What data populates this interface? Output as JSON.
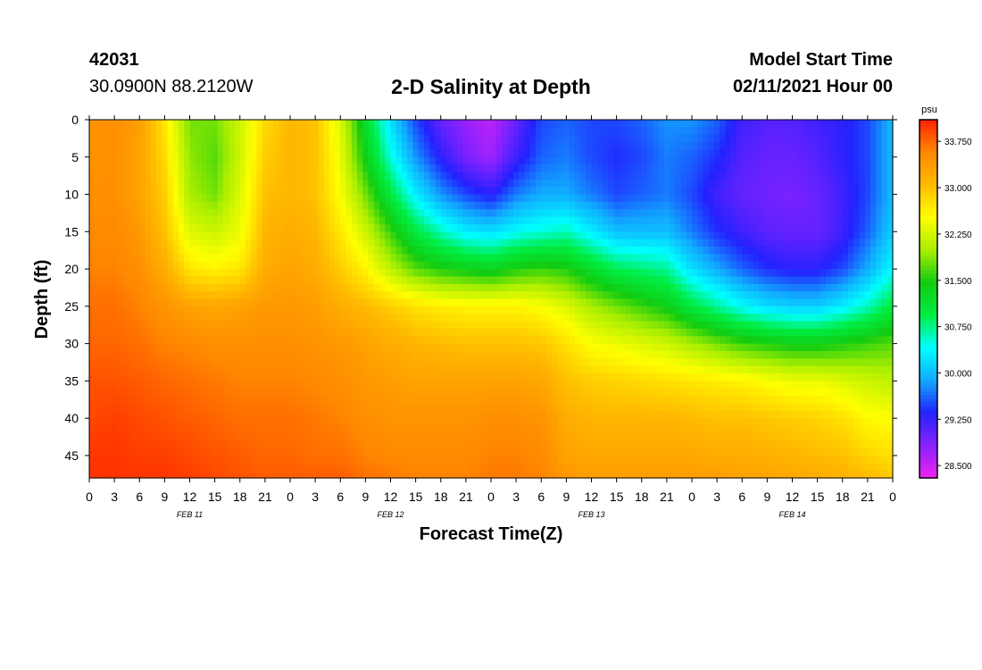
{
  "header": {
    "station_id": "42031",
    "coordinates": "30.0900N 88.2120W",
    "title": "2-D Salinity at Depth",
    "start_label": "Model Start Time",
    "start_value": "02/11/2021 Hour 00"
  },
  "colors": {
    "ramp": [
      "#ee22ee",
      "#8822ff",
      "#2222ff",
      "#11aaff",
      "#00ffff",
      "#00ee44",
      "#11cc11",
      "#aaee00",
      "#ffff00",
      "#ffbb00",
      "#ff8800",
      "#ff2200"
    ]
  },
  "chart_data": {
    "type": "heatmap",
    "title": "2-D Salinity at Depth",
    "xlabel": "Forecast Time(Z)",
    "ylabel": "Depth (ft)",
    "colorbar_unit": "psu",
    "colorbar_ticks": [
      "33.750",
      "33.000",
      "32.250",
      "31.500",
      "30.750",
      "30.000",
      "29.250",
      "28.500"
    ],
    "colorbar_range": [
      28.3,
      34.1
    ],
    "x_range_hours": [
      0,
      96
    ],
    "y_range_ft": [
      0,
      48
    ],
    "y_reversed": true,
    "x_tick_labels": [
      "0",
      "3",
      "6",
      "9",
      "12",
      "15",
      "18",
      "21",
      "0",
      "3",
      "6",
      "9",
      "12",
      "15",
      "18",
      "21",
      "0",
      "3",
      "6",
      "9",
      "12",
      "15",
      "18",
      "21",
      "0",
      "3",
      "6",
      "9",
      "12",
      "15",
      "18",
      "21",
      "0"
    ],
    "y_ticks": [
      0,
      5,
      10,
      15,
      20,
      25,
      30,
      35,
      40,
      45
    ],
    "date_labels": [
      {
        "text": "FEB 11",
        "hour": 12
      },
      {
        "text": "FEB 12",
        "hour": 36
      },
      {
        "text": "FEB 13",
        "hour": 60
      },
      {
        "text": "FEB 14",
        "hour": 84
      }
    ],
    "salinity_grid": {
      "hours": [
        0,
        3,
        6,
        9,
        12,
        15,
        18,
        21,
        24,
        27,
        30,
        33,
        36,
        39,
        42,
        45,
        48,
        51,
        54,
        57,
        60,
        63,
        66,
        69,
        72,
        75,
        78,
        81,
        84,
        87,
        90,
        93,
        96
      ],
      "depths_ft": [
        0,
        5,
        10,
        15,
        20,
        25,
        30,
        35,
        40,
        45,
        48
      ],
      "values_psu": [
        [
          33.45,
          33.45,
          33.5,
          33.55,
          33.6,
          33.7,
          33.75,
          33.85,
          33.9,
          34.0,
          34.0
        ],
        [
          33.5,
          33.5,
          33.5,
          33.55,
          33.6,
          33.7,
          33.75,
          33.85,
          33.95,
          34.0,
          34.0
        ],
        [
          33.35,
          33.3,
          33.3,
          33.4,
          33.5,
          33.6,
          33.7,
          33.8,
          33.9,
          33.95,
          34.0
        ],
        [
          32.7,
          32.8,
          32.9,
          33.0,
          33.2,
          33.45,
          33.6,
          33.75,
          33.85,
          33.95,
          34.0
        ],
        [
          31.8,
          31.9,
          32.0,
          32.3,
          32.7,
          33.3,
          33.55,
          33.7,
          33.8,
          33.9,
          33.95
        ],
        [
          31.8,
          31.7,
          31.8,
          32.2,
          32.6,
          33.25,
          33.5,
          33.65,
          33.75,
          33.85,
          33.9
        ],
        [
          32.2,
          32.2,
          32.3,
          32.4,
          32.7,
          33.3,
          33.5,
          33.6,
          33.7,
          33.8,
          33.85
        ],
        [
          32.8,
          32.9,
          33.0,
          33.1,
          33.2,
          33.4,
          33.5,
          33.6,
          33.7,
          33.75,
          33.8
        ],
        [
          33.1,
          33.1,
          33.1,
          33.2,
          33.3,
          33.4,
          33.5,
          33.6,
          33.7,
          33.75,
          33.8
        ],
        [
          33.0,
          33.0,
          33.0,
          33.1,
          33.2,
          33.35,
          33.45,
          33.55,
          33.65,
          33.7,
          33.8
        ],
        [
          32.3,
          32.4,
          32.5,
          32.7,
          32.9,
          33.2,
          33.4,
          33.5,
          33.6,
          33.7,
          33.8
        ],
        [
          31.2,
          31.4,
          31.8,
          32.2,
          32.6,
          33.05,
          33.3,
          33.4,
          33.5,
          33.6,
          33.7
        ],
        [
          30.2,
          30.5,
          31.0,
          31.6,
          32.1,
          32.9,
          33.2,
          33.35,
          33.45,
          33.55,
          33.65
        ],
        [
          29.5,
          29.8,
          30.3,
          31.0,
          31.7,
          32.75,
          33.1,
          33.3,
          33.45,
          33.55,
          33.6
        ],
        [
          29.0,
          29.3,
          29.8,
          30.6,
          31.5,
          32.65,
          33.05,
          33.3,
          33.45,
          33.55,
          33.6
        ],
        [
          28.75,
          28.9,
          29.5,
          30.3,
          31.4,
          32.6,
          33.0,
          33.3,
          33.45,
          33.55,
          33.6
        ],
        [
          28.55,
          28.7,
          29.3,
          30.2,
          31.3,
          32.6,
          33.0,
          33.3,
          33.5,
          33.6,
          33.65
        ],
        [
          29.0,
          29.2,
          29.7,
          30.4,
          31.5,
          32.6,
          33.0,
          33.3,
          33.5,
          33.6,
          33.65
        ],
        [
          29.5,
          29.6,
          29.9,
          30.5,
          31.6,
          32.5,
          32.95,
          33.25,
          33.45,
          33.55,
          33.6
        ],
        [
          29.6,
          29.7,
          29.9,
          30.6,
          31.5,
          32.3,
          32.75,
          33.0,
          33.2,
          33.3,
          33.4
        ],
        [
          29.5,
          29.5,
          29.7,
          30.3,
          31.2,
          32.0,
          32.5,
          32.9,
          33.1,
          33.25,
          33.35
        ],
        [
          29.5,
          29.4,
          29.5,
          30.0,
          30.9,
          31.8,
          32.4,
          32.85,
          33.1,
          33.25,
          33.35
        ],
        [
          29.6,
          29.5,
          29.6,
          30.0,
          30.8,
          31.6,
          32.3,
          32.8,
          33.1,
          33.25,
          33.35
        ],
        [
          29.8,
          29.7,
          29.7,
          30.0,
          30.7,
          31.4,
          32.2,
          32.75,
          33.1,
          33.25,
          33.35
        ],
        [
          29.8,
          29.6,
          29.5,
          29.7,
          30.2,
          31.0,
          32.0,
          32.7,
          33.05,
          33.25,
          33.35
        ],
        [
          29.6,
          29.4,
          29.2,
          29.4,
          29.9,
          30.7,
          31.8,
          32.65,
          33.0,
          33.2,
          33.35
        ],
        [
          29.2,
          29.1,
          29.0,
          29.2,
          29.6,
          30.4,
          31.6,
          32.6,
          33.0,
          33.2,
          33.3
        ],
        [
          29.1,
          29.0,
          28.95,
          29.05,
          29.4,
          30.2,
          31.5,
          32.5,
          32.95,
          33.15,
          33.3
        ],
        [
          29.1,
          29.0,
          28.9,
          29.0,
          29.3,
          30.1,
          31.4,
          32.4,
          32.9,
          33.1,
          33.25
        ],
        [
          29.2,
          29.1,
          29.0,
          29.0,
          29.3,
          30.1,
          31.4,
          32.4,
          32.85,
          33.05,
          33.2
        ],
        [
          29.3,
          29.3,
          29.2,
          29.2,
          29.5,
          30.3,
          31.5,
          32.3,
          32.75,
          33.0,
          33.15
        ],
        [
          29.5,
          29.5,
          29.5,
          29.6,
          29.9,
          30.6,
          31.6,
          32.2,
          32.55,
          32.85,
          33.05
        ],
        [
          30.0,
          30.0,
          30.0,
          30.1,
          30.4,
          31.0,
          31.7,
          32.1,
          32.5,
          32.75,
          32.95
        ]
      ]
    }
  }
}
